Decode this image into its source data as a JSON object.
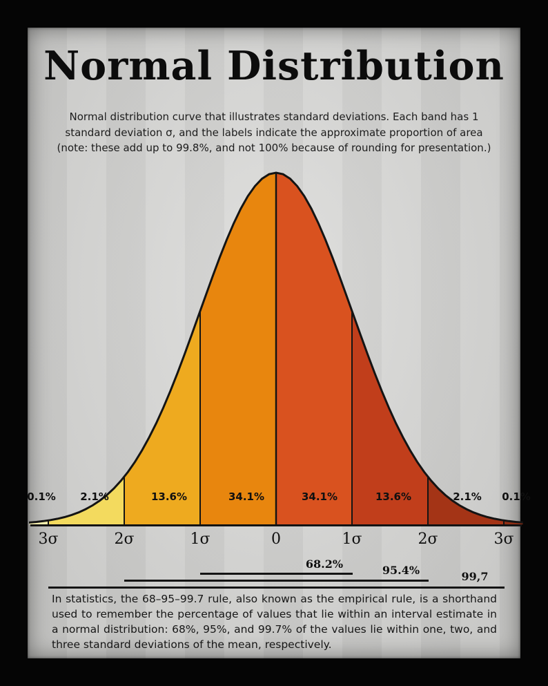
{
  "poster": {
    "title": "Normal Distribution",
    "subtitle": "Normal distribution curve that illustrates standard deviations. Each band has 1 standard deviation σ, and the labels indicate the approximate proportion of area (note: these add up to 99.8%, and not 100% because of rounding for presentation.)",
    "footer": "In statistics, the 68–95–99.7 rule, also known as the empirical rule, is a shorthand used to remember the percentage of values that lie within an interval estimate in a normal distribution: 68%, 95%, and 99.7% of the values lie within one, two, and three standard deviations of the mean, respectively."
  },
  "chart_data": {
    "type": "area",
    "title": "Normal Distribution",
    "description": "Standard normal bell curve divided into 1-sigma bands, each labeled with the approximate proportion of total area",
    "x_tick_labels": [
      "3σ",
      "2σ",
      "1σ",
      "0",
      "1σ",
      "2σ",
      "3σ"
    ],
    "x_ticks_sigma": [
      -3,
      -2,
      -1,
      0,
      1,
      2,
      3
    ],
    "bands": [
      {
        "sigma_from": -3.25,
        "sigma_to": -3,
        "pct": "0.1%",
        "value": 0.1,
        "color": "#f6efad"
      },
      {
        "sigma_from": -3,
        "sigma_to": -2,
        "pct": "2.1%",
        "value": 2.1,
        "color": "#f3da5e"
      },
      {
        "sigma_from": -2,
        "sigma_to": -1,
        "pct": "13.6%",
        "value": 13.6,
        "color": "#eeaa1f"
      },
      {
        "sigma_from": -1,
        "sigma_to": 0,
        "pct": "34.1%",
        "value": 34.1,
        "color": "#e8860e"
      },
      {
        "sigma_from": 0,
        "sigma_to": 1,
        "pct": "34.1%",
        "value": 34.1,
        "color": "#d9521f"
      },
      {
        "sigma_from": 1,
        "sigma_to": 2,
        "pct": "13.6%",
        "value": 13.6,
        "color": "#c13e1b"
      },
      {
        "sigma_from": 2,
        "sigma_to": 3,
        "pct": "2.1%",
        "value": 2.1,
        "color": "#a43416"
      },
      {
        "sigma_from": 3,
        "sigma_to": 3.25,
        "pct": "0.1%",
        "value": 0.1,
        "color": "#8e2d13"
      }
    ],
    "intervals": [
      {
        "label": "68.2%",
        "span_sigma": 1
      },
      {
        "label": "95.4%",
        "span_sigma": 2
      },
      {
        "label": "99,7",
        "span_sigma": 3
      }
    ],
    "curve_color": "#141414",
    "paper_color": "#d8d8d6",
    "frame_color": "#000000"
  }
}
